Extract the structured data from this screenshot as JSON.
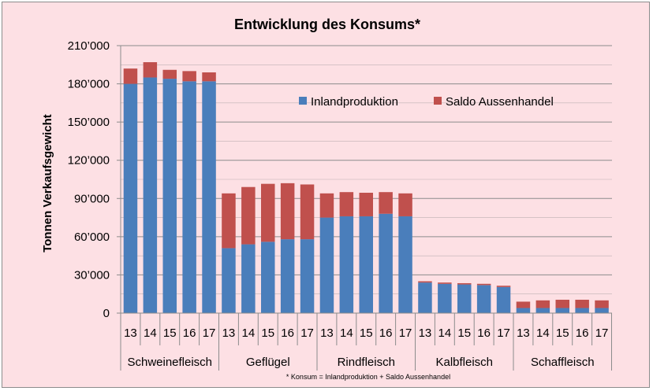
{
  "colors": {
    "background": "#fde0e4",
    "inland": "#4a7ebb",
    "saldo": "#c0504d",
    "grid": "#8c8c8c"
  },
  "footnote": "* Konsum = Inlandproduktion + Saldo Aussenhandel",
  "chart_data": {
    "type": "bar",
    "stacked": true,
    "title": "Entwicklung des Konsums*",
    "ylabel": "Tonnen Verkaufsgewicht",
    "xlabel": "",
    "ylim": [
      0,
      210000
    ],
    "yticks": [
      0,
      30000,
      60000,
      90000,
      120000,
      150000,
      180000,
      210000
    ],
    "ytick_labels": [
      "0",
      "30’000",
      "60’000",
      "90’000",
      "120’000",
      "150’000",
      "180’000",
      "210’000"
    ],
    "grid": true,
    "legend_position": "upper-right",
    "groups": [
      {
        "name": "Schweinefleisch",
        "years": [
          "13",
          "14",
          "15",
          "16",
          "17"
        ]
      },
      {
        "name": "Geflügel",
        "years": [
          "13",
          "14",
          "15",
          "16",
          "17"
        ]
      },
      {
        "name": "Rindfleisch",
        "years": [
          "13",
          "14",
          "15",
          "16",
          "17"
        ]
      },
      {
        "name": "Kalbfleisch",
        "years": [
          "13",
          "14",
          "15",
          "16",
          "17"
        ]
      },
      {
        "name": "Schaffleisch",
        "years": [
          "13",
          "14",
          "15",
          "16",
          "17"
        ]
      }
    ],
    "series": [
      {
        "name": "Inlandproduktion",
        "color": "#4a7ebb",
        "values": [
          [
            180000,
            185000,
            184000,
            182000,
            182000
          ],
          [
            51000,
            54000,
            56000,
            58000,
            58000
          ],
          [
            75000,
            76000,
            76000,
            78000,
            76000
          ],
          [
            24000,
            23000,
            22500,
            22000,
            20500
          ],
          [
            4000,
            4000,
            4000,
            4000,
            4000
          ]
        ]
      },
      {
        "name": "Saldo Aussenhandel",
        "color": "#c0504d",
        "values": [
          [
            12000,
            12000,
            7000,
            8000,
            7000
          ],
          [
            43000,
            45000,
            45500,
            44000,
            43000
          ],
          [
            19000,
            19000,
            18500,
            17000,
            18000
          ],
          [
            1000,
            1000,
            1000,
            1000,
            1000
          ],
          [
            5000,
            6000,
            6500,
            6500,
            6000
          ]
        ]
      }
    ]
  }
}
